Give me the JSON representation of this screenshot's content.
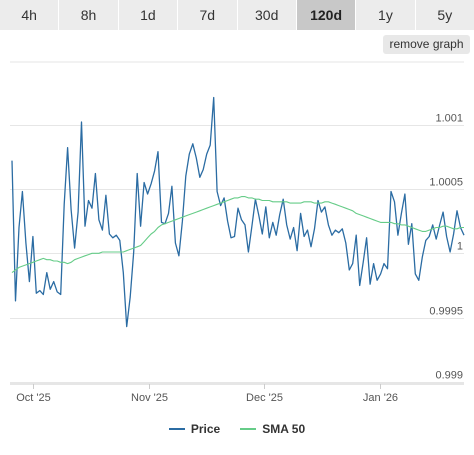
{
  "toolbar": {
    "tabs": [
      {
        "label": "4h",
        "active": false
      },
      {
        "label": "8h",
        "active": false
      },
      {
        "label": "1d",
        "active": false
      },
      {
        "label": "7d",
        "active": false
      },
      {
        "label": "30d",
        "active": false
      },
      {
        "label": "120d",
        "active": true
      },
      {
        "label": "1y",
        "active": false
      },
      {
        "label": "5y",
        "active": false
      }
    ],
    "remove_graph_label": "remove graph"
  },
  "colors": {
    "price": "#2b6ca3",
    "sma": "#66cc88",
    "grid": "#e6e6e6"
  },
  "chart_data": {
    "type": "line",
    "title": "",
    "xlabel": "",
    "ylabel": "",
    "x_ticks": [
      "Oct '25",
      "Nov '25",
      "Dec '25",
      "Jan '26"
    ],
    "y_ticks": [
      "1.001",
      "1.0005",
      "1",
      "0.9995",
      "0.999"
    ],
    "ylim": [
      0.999,
      1.00121
    ],
    "legend_position": "bottom",
    "series": [
      {
        "name": "Price",
        "values": [
          1.00072,
          0.99963,
          1.0002,
          1.00048,
          1.00008,
          0.99978,
          1.00013,
          0.99969,
          0.99971,
          0.99968,
          0.99985,
          0.99972,
          0.99978,
          0.9997,
          0.99968,
          1.00038,
          1.00082,
          1.00034,
          1.00004,
          1.00032,
          1.00102,
          1.00021,
          1.00041,
          1.00035,
          1.00062,
          1.00026,
          1.00018,
          1.00045,
          1.00015,
          1.00012,
          1.00014,
          1.0001,
          0.99985,
          0.99943,
          0.99966,
          1.00001,
          1.00062,
          1.00021,
          1.00055,
          1.00046,
          1.00054,
          1.00064,
          1.00079,
          1.00024,
          1.00023,
          1.00031,
          1.00052,
          1.00008,
          0.99998,
          1.00025,
          1.0006,
          1.00077,
          1.00085,
          1.00074,
          1.00059,
          1.00065,
          1.00077,
          1.00084,
          1.00121,
          1.00048,
          1.00037,
          1.00043,
          1.00025,
          1.00012,
          1.00013,
          1.00035,
          1.00026,
          1.00022,
          1.00001,
          1.00021,
          1.00042,
          1.00029,
          1.00015,
          1.00036,
          1.00012,
          1.00024,
          1.00014,
          1.0003,
          1.00042,
          1.00022,
          1.00011,
          1.0002,
          1.00002,
          1.00031,
          1.00013,
          1.00018,
          1.00005,
          1.00019,
          1.00041,
          1.00032,
          1.00036,
          1.00022,
          1.00014,
          1.00018,
          1.00016,
          1.00019,
          1.00008,
          0.99987,
          0.99992,
          1.00014,
          0.99975,
          0.99993,
          1.00012,
          0.99976,
          0.99992,
          0.99979,
          0.99984,
          0.99992,
          0.99988,
          1.00048,
          1.0004,
          1.00014,
          1.00031,
          1.00046,
          1.00007,
          1.00023,
          0.99984,
          0.99979,
          0.99997,
          1.0001,
          1.00013,
          1.00022,
          1.00011,
          1.00022,
          1.00032,
          1.00013,
          1.00001,
          1.00015,
          1.00033,
          1.0002,
          1.00014
        ]
      },
      {
        "name": "SMA 50",
        "values": [
          0.99985,
          0.99987,
          0.99989,
          0.9999,
          0.99991,
          0.99992,
          0.99993,
          0.99994,
          0.99995,
          0.99996,
          0.99995,
          0.99995,
          0.99994,
          0.99994,
          0.99993,
          0.99993,
          0.99992,
          0.99993,
          0.99995,
          0.99996,
          0.99997,
          0.99998,
          0.99999,
          1.0,
          1.0,
          1.0,
          1.00001,
          1.00001,
          1.00001,
          1.00001,
          1.00001,
          1.00001,
          1.00001,
          1.00002,
          1.00003,
          1.00004,
          1.00005,
          1.00006,
          1.00009,
          1.00012,
          1.00015,
          1.00017,
          1.0002,
          1.00022,
          1.00023,
          1.00024,
          1.00025,
          1.00026,
          1.00027,
          1.00028,
          1.00029,
          1.0003,
          1.00031,
          1.00032,
          1.00033,
          1.00034,
          1.00035,
          1.00036,
          1.00037,
          1.00038,
          1.00039,
          1.0004,
          1.00041,
          1.00042,
          1.00043,
          1.00043,
          1.00044,
          1.00044,
          1.00043,
          1.00043,
          1.00042,
          1.00042,
          1.00041,
          1.00041,
          1.00041,
          1.0004,
          1.0004,
          1.0004,
          1.0004,
          1.0004,
          1.00039,
          1.00039,
          1.00039,
          1.00039,
          1.0004,
          1.0004,
          1.0004,
          1.00039,
          1.00039,
          1.00039,
          1.0004,
          1.0004,
          1.00039,
          1.00038,
          1.00037,
          1.00036,
          1.00035,
          1.00034,
          1.00033,
          1.00031,
          1.0003,
          1.00029,
          1.00028,
          1.00027,
          1.00026,
          1.00025,
          1.00024,
          1.00024,
          1.00024,
          1.00024,
          1.00023,
          1.00023,
          1.00022,
          1.00022,
          1.00021,
          1.0002,
          1.00019,
          1.00018,
          1.00017,
          1.00017,
          1.00018,
          1.00019,
          1.0002,
          1.0002,
          1.00021,
          1.00021,
          1.0002,
          1.00019,
          1.00019,
          1.0002,
          1.0002
        ]
      }
    ]
  }
}
